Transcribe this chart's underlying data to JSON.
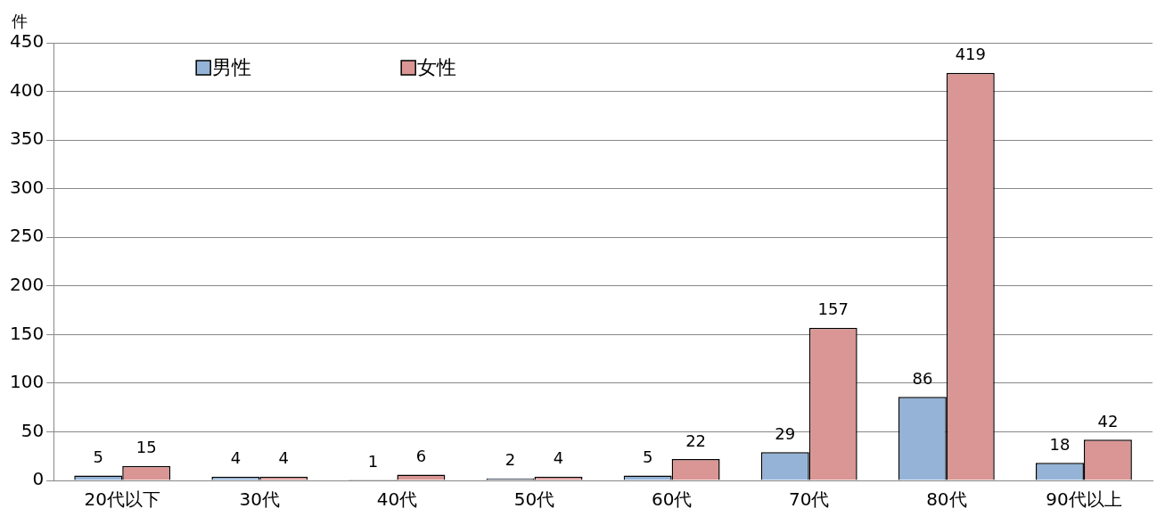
{
  "chart_data": {
    "type": "bar",
    "ylabel": "件",
    "categories": [
      "20代以下",
      "30代",
      "40代",
      "50代",
      "60代",
      "70代",
      "80代",
      "90代以上"
    ],
    "series": [
      {
        "name": "男性",
        "color": "#95b3d7",
        "values": [
          5,
          4,
          1,
          2,
          5,
          29,
          86,
          18
        ]
      },
      {
        "name": "女性",
        "color": "#d99694",
        "values": [
          15,
          4,
          6,
          4,
          22,
          157,
          419,
          42
        ]
      }
    ],
    "ylim": [
      0,
      450
    ],
    "yticks": [
      0,
      50,
      100,
      150,
      200,
      250,
      300,
      350,
      400,
      450
    ],
    "grid": "y",
    "legend": "top left",
    "data_labels": true
  }
}
